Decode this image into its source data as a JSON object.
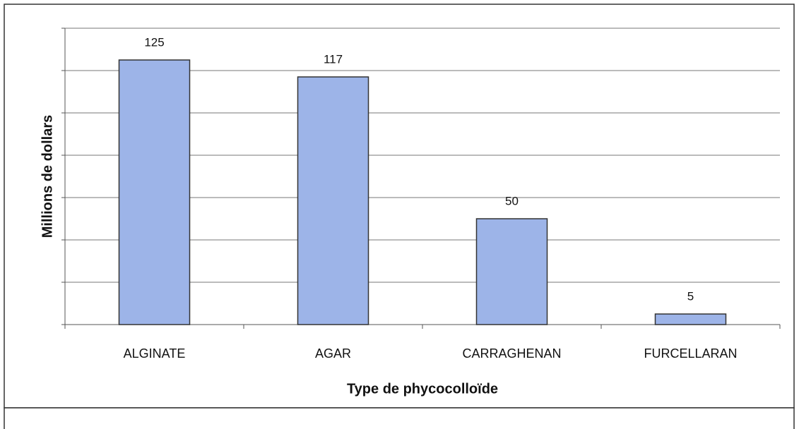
{
  "chart_data": {
    "type": "bar",
    "x_label": "Type de phycocolloïde",
    "y_label": "Millions de dollars",
    "categories": [
      "ALGINATE",
      "AGAR",
      "CARRAGHENAN",
      "FURCELLARAN"
    ],
    "values": [
      125,
      117,
      50,
      5
    ],
    "color": "#9db4e8",
    "ylim": [
      0,
      140
    ],
    "yticks": [
      0,
      20,
      40,
      60,
      80,
      100,
      120,
      140
    ],
    "grid": true
  }
}
